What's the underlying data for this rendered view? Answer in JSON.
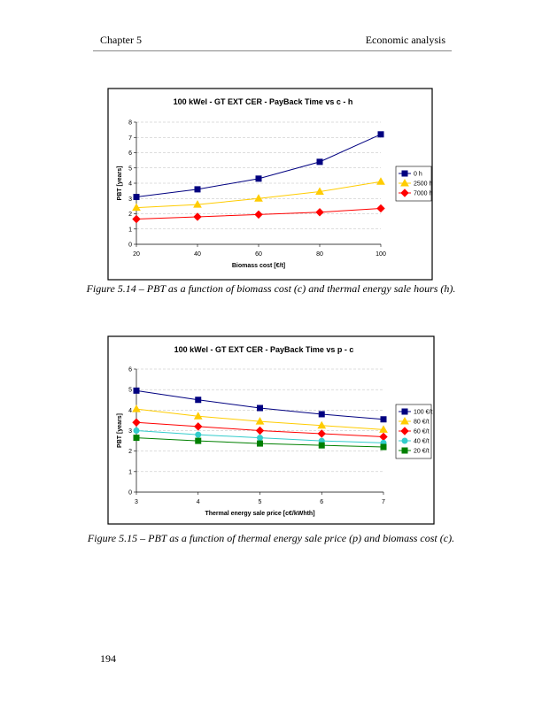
{
  "header": {
    "chapter": "Chapter 5",
    "section": "Economic analysis"
  },
  "captions": [
    "Figure 5.14 – PBT as a function of biomass cost (c) and thermal energy sale hours (h).",
    "Figure 5.15 – PBT as a function of thermal energy sale price (p) and biomass cost (c)."
  ],
  "page_number": "194",
  "chart_data": [
    {
      "type": "line",
      "title": "100 kWel - GT EXT CER - PayBack Time vs c - h",
      "x_label": "Biomass cost [€/t]",
      "y_label": "PBT [years]",
      "x": [
        20,
        40,
        60,
        80,
        100
      ],
      "xlim": [
        20,
        100
      ],
      "xticks": [
        20,
        40,
        60,
        80,
        100
      ],
      "ylim": [
        0,
        8
      ],
      "yticks": [
        0,
        1,
        2,
        3,
        4,
        5,
        6,
        7,
        8
      ],
      "grid": true,
      "legend": "right",
      "series": [
        {
          "name": "0 h",
          "color": "#000080",
          "marker": "square",
          "values": [
            3.1,
            3.6,
            4.3,
            5.4,
            7.2
          ]
        },
        {
          "name": "2500 h",
          "color": "#ffcc00",
          "marker": "triangle",
          "values": [
            2.4,
            2.6,
            3.0,
            3.45,
            4.1
          ]
        },
        {
          "name": "7000 h",
          "color": "#ff0000",
          "marker": "diamond",
          "values": [
            1.65,
            1.8,
            1.95,
            2.1,
            2.35
          ]
        }
      ]
    },
    {
      "type": "line",
      "title": "100 kWel - GT EXT CER - PayBack Time vs p - c",
      "x_label": "Thermal energy sale price [c€/kWhth]",
      "y_label": "PBT [years]",
      "x": [
        3,
        4,
        5,
        6,
        7
      ],
      "xlim": [
        3,
        7
      ],
      "xticks": [
        3,
        4,
        5,
        6,
        7
      ],
      "ylim": [
        0,
        6
      ],
      "yticks": [
        0,
        1,
        2,
        3,
        4,
        5,
        6
      ],
      "grid": true,
      "legend": "right",
      "series": [
        {
          "name": "100 €/t",
          "color": "#000080",
          "marker": "square",
          "values": [
            4.95,
            4.5,
            4.1,
            3.8,
            3.55
          ]
        },
        {
          "name": "80 €/t",
          "color": "#ffcc00",
          "marker": "triangle",
          "values": [
            4.05,
            3.7,
            3.45,
            3.25,
            3.05
          ]
        },
        {
          "name": "60 €/t",
          "color": "#ff0000",
          "marker": "diamond",
          "values": [
            3.4,
            3.2,
            3.0,
            2.85,
            2.7
          ]
        },
        {
          "name": "40 €/t",
          "color": "#33cccc",
          "marker": "circle",
          "values": [
            3.0,
            2.8,
            2.65,
            2.5,
            2.4
          ]
        },
        {
          "name": "20 €/t",
          "color": "#008000",
          "marker": "square",
          "values": [
            2.65,
            2.5,
            2.37,
            2.28,
            2.2
          ]
        }
      ]
    }
  ]
}
